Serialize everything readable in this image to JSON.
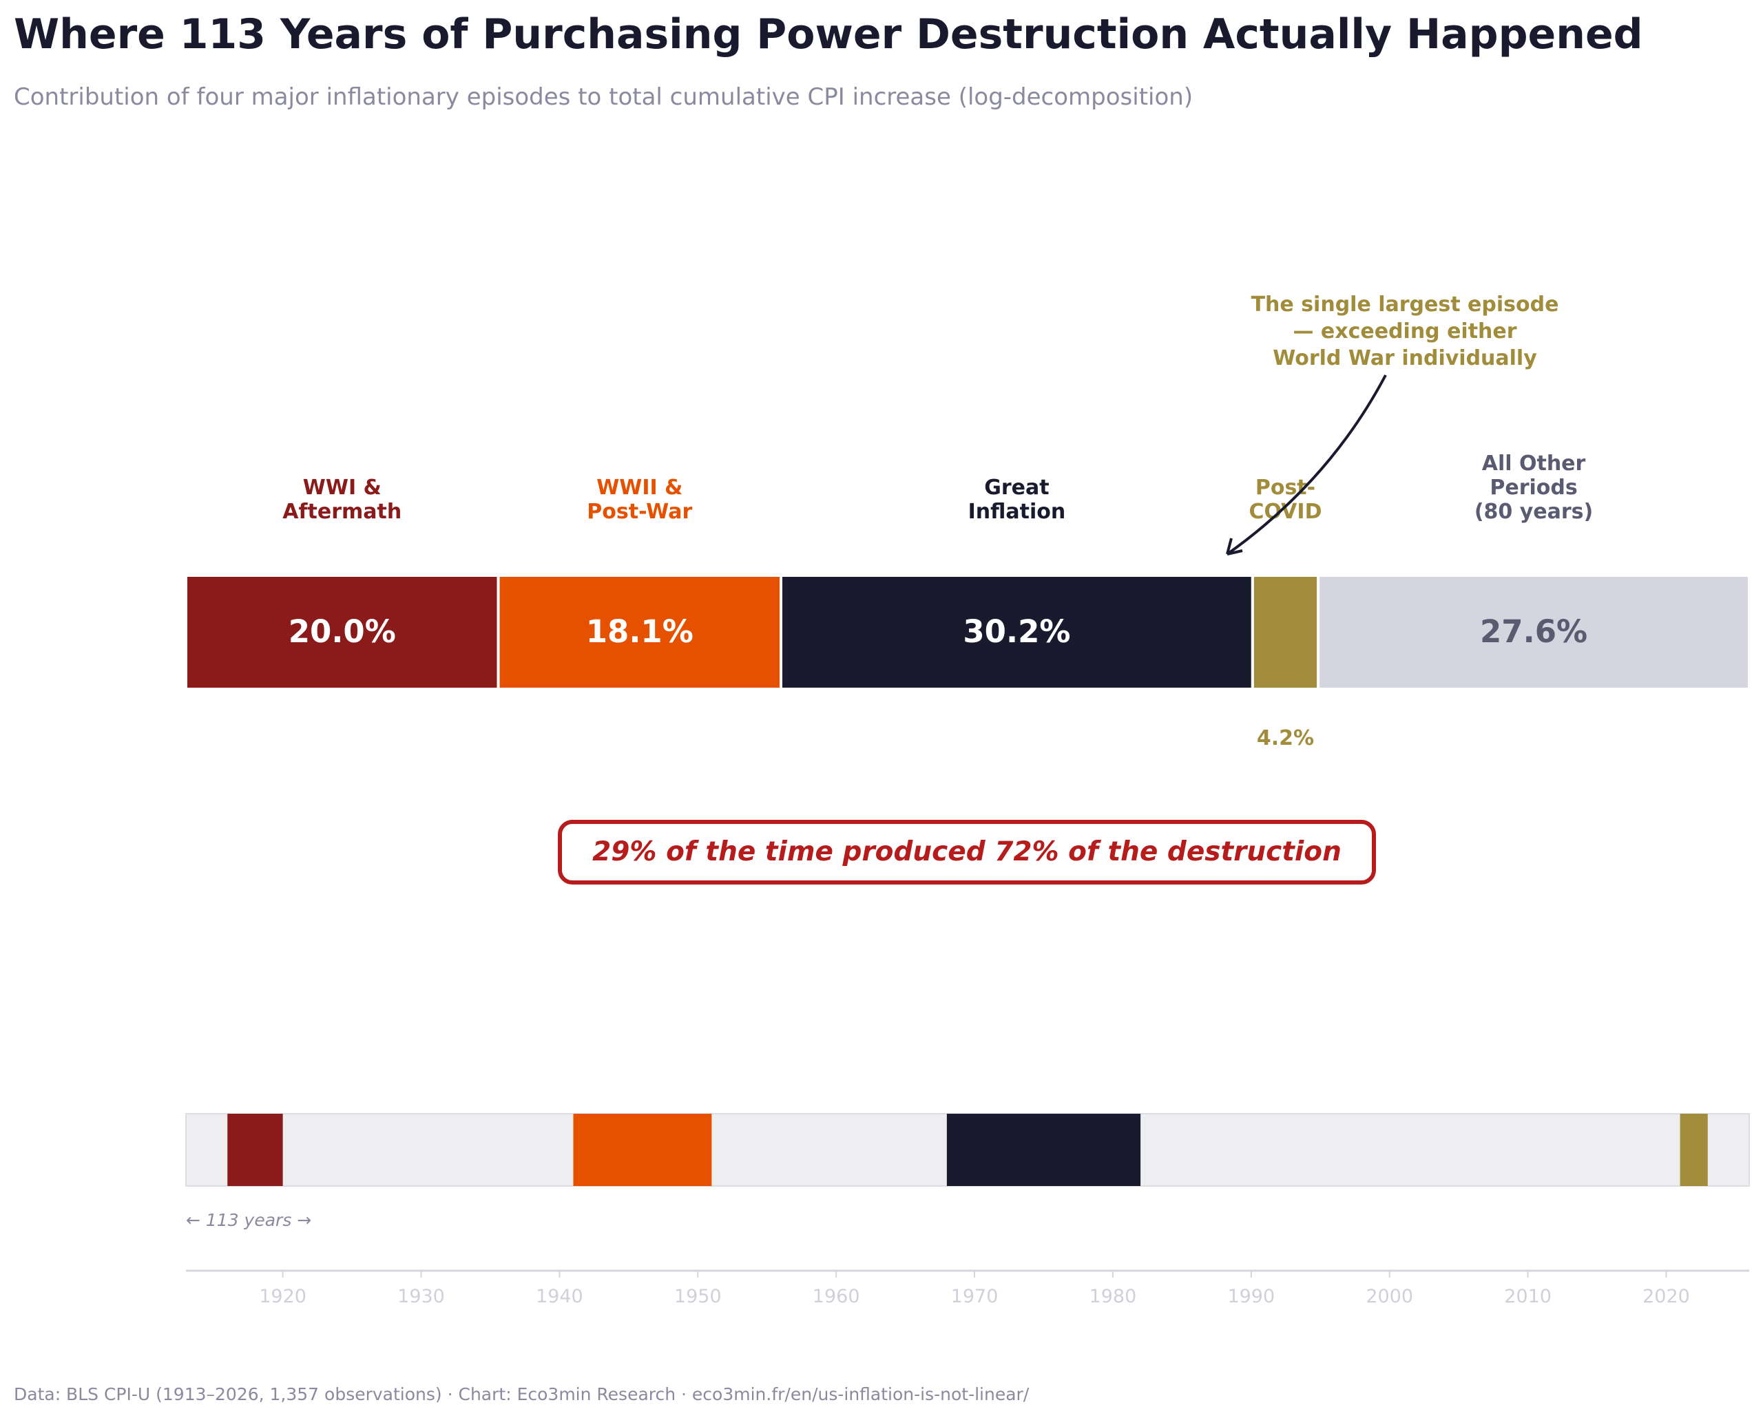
{
  "title": "Where 113 Years of Purchasing Power Destruction Actually Happened",
  "subtitle": "Contribution of four major inflationary episodes to total cumulative CPI increase (log-decomposition)",
  "footer": "Data: BLS CPI-U (1913–2026, 1,357 observations) · Chart: Eco3min Research · eco3min.fr/en/us-inflation-is-not-linear/",
  "chart_data": [
    {
      "type": "bar",
      "orientation": "horizontal-stacked",
      "unit": "% of total cumulative CPI increase",
      "segments": [
        {
          "label": [
            "WWI &",
            "Aftermath"
          ],
          "value": 20.0,
          "value_label": "20.0%",
          "color": "#8B1A1A",
          "label_color": "#8B1A1A",
          "value_color": "#FFFFFF"
        },
        {
          "label": [
            "WWII &",
            "Post-War"
          ],
          "value": 18.1,
          "value_label": "18.1%",
          "color": "#E65100",
          "label_color": "#E65100",
          "value_color": "#FFFFFF"
        },
        {
          "label": [
            "Great",
            "Inflation"
          ],
          "value": 30.2,
          "value_label": "30.2%",
          "color": "#1A1A2E",
          "label_color": "#1A1A2E",
          "value_color": "#FFFFFF"
        },
        {
          "label": [
            "Post-",
            "COVID"
          ],
          "value": 4.2,
          "value_label": "4.2%",
          "color": "#A08C3A",
          "label_color": "#A08C3A",
          "value_color": "#A08C3A",
          "value_below": true
        },
        {
          "label": [
            "All Other",
            "Periods",
            "(80 years)"
          ],
          "value": 27.6,
          "value_label": "27.6%",
          "color": "#D5D5DF",
          "label_color": "#5A5A70",
          "value_color": "#5A5A70"
        }
      ],
      "annotation": {
        "lines": [
          "The single largest episode",
          "— exceeding either",
          "World War individually"
        ],
        "color": "#A08C3A",
        "points_to": "Great Inflation"
      },
      "callout": {
        "text": "29% of the time produced 72% of the destruction",
        "color": "#B71C1C"
      }
    },
    {
      "type": "timeline",
      "xlim": [
        1913,
        2026
      ],
      "ticks": [
        1920,
        1930,
        1940,
        1950,
        1960,
        1970,
        1980,
        1990,
        2000,
        2010,
        2020
      ],
      "background_color": "#EEEEF1",
      "episodes": [
        {
          "start": 1916,
          "end": 1920,
          "color": "#8B1A1A"
        },
        {
          "start": 1941,
          "end": 1951,
          "color": "#E65100"
        },
        {
          "start": 1968,
          "end": 1982,
          "color": "#1A1A2E"
        },
        {
          "start": 2021,
          "end": 2023,
          "color": "#A08C3A"
        }
      ],
      "span_label": "← 113 years →"
    }
  ]
}
